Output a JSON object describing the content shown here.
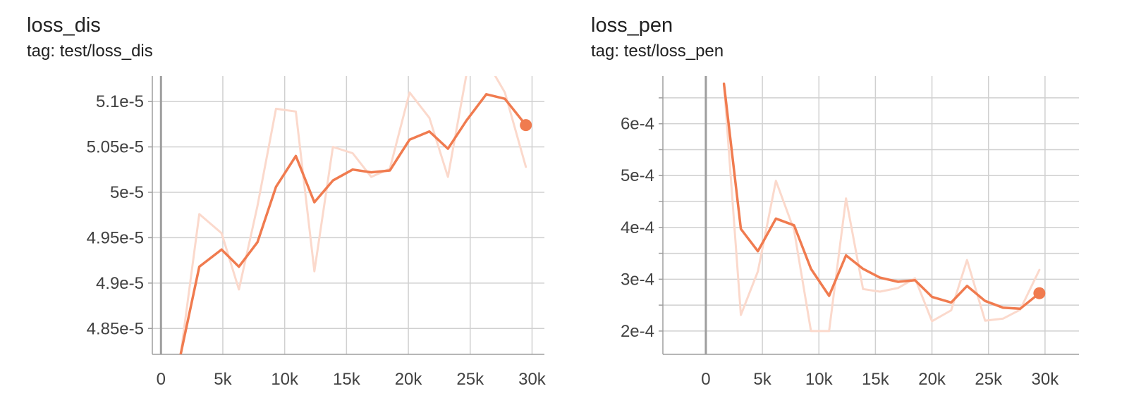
{
  "colors": {
    "line": "#f07b4f",
    "raw": "#fbd9cc",
    "grid": "#d0d0d0",
    "axis": "#9e9e9e",
    "zero": "#9e9e9e",
    "text": "#424242"
  },
  "cards": [
    {
      "title": "loss_dis",
      "tag": "tag: test/loss_dis"
    },
    {
      "title": "loss_pen",
      "tag": "tag: test/loss_pen"
    }
  ],
  "chart_data": [
    {
      "type": "line",
      "title": "loss_dis",
      "subtitle": "tag: test/loss_dis",
      "xlim": [
        -700,
        31000
      ],
      "ylim": [
        4.8215e-05,
        5.128e-05
      ],
      "x_ticks": [
        0,
        5000,
        10000,
        15000,
        20000,
        25000,
        30000
      ],
      "x_tick_labels": [
        "0",
        "5k",
        "10k",
        "15k",
        "20k",
        "25k",
        "30k"
      ],
      "y_ticks": [
        4.85e-05,
        4.9e-05,
        4.95e-05,
        5e-05,
        5.05e-05,
        5.1e-05
      ],
      "y_tick_labels": [
        "4.85e-5",
        "4.9e-5",
        "4.95e-5",
        "5e-5",
        "5.05e-5",
        "5.1e-5"
      ],
      "grid": true,
      "series": [
        {
          "role": "smoothed",
          "x": [
            1600,
            3100,
            4900,
            6300,
            7800,
            9300,
            10900,
            12400,
            13900,
            15500,
            17000,
            18500,
            20100,
            21700,
            23200,
            24700,
            26300,
            27800,
            29500
          ],
          "y": [
            4.822e-05,
            4.918e-05,
            4.937e-05,
            4.918e-05,
            4.945e-05,
            5.006e-05,
            5.04e-05,
            4.989e-05,
            5.013e-05,
            5.025e-05,
            5.022e-05,
            5.024e-05,
            5.058e-05,
            5.067e-05,
            5.048e-05,
            5.079e-05,
            5.108e-05,
            5.103e-05,
            5.074e-05
          ]
        },
        {
          "role": "raw",
          "x": [
            1600,
            3100,
            4900,
            6300,
            7800,
            9300,
            10900,
            12400,
            13900,
            15500,
            17000,
            18500,
            20100,
            21700,
            23200,
            24700,
            26300,
            27800,
            29500
          ],
          "y": [
            4.822e-05,
            4.976e-05,
            4.955e-05,
            4.893e-05,
            4.985e-05,
            5.092e-05,
            5.089e-05,
            4.913e-05,
            5.05e-05,
            5.043e-05,
            5.017e-05,
            5.026e-05,
            5.11e-05,
            5.082e-05,
            5.017e-05,
            5.13e-05,
            5.145e-05,
            5.11e-05,
            5.028e-05
          ]
        }
      ]
    },
    {
      "type": "line",
      "title": "loss_pen",
      "subtitle": "tag: test/loss_pen",
      "xlim": [
        -3800,
        33000
      ],
      "ylim": [
        0.000155,
        0.000692
      ],
      "x_ticks": [
        0,
        5000,
        10000,
        15000,
        20000,
        25000,
        30000
      ],
      "x_tick_labels": [
        "0",
        "5k",
        "10k",
        "15k",
        "20k",
        "25k",
        "30k"
      ],
      "y_ticks": [
        0.0002,
        0.0003,
        0.0004,
        0.0005,
        0.0006
      ],
      "y_tick_labels": [
        "2e-4",
        "3e-4",
        "4e-4",
        "5e-4",
        "6e-4"
      ],
      "y_minor_ticks": [
        0.00025,
        0.00035,
        0.00045,
        0.00055,
        0.00065
      ],
      "grid": true,
      "series": [
        {
          "role": "smoothed",
          "x": [
            1600,
            3100,
            4600,
            6200,
            7800,
            9300,
            10900,
            12400,
            13900,
            15400,
            17000,
            18500,
            20000,
            21700,
            23100,
            24700,
            26300,
            27800,
            29500
          ],
          "y": [
            0.000677,
            0.000397,
            0.000354,
            0.000417,
            0.000404,
            0.00032,
            0.000268,
            0.000346,
            0.00032,
            0.000303,
            0.000295,
            0.000298,
            0.000266,
            0.000255,
            0.000287,
            0.000258,
            0.000245,
            0.000243,
            0.000273
          ]
        },
        {
          "role": "raw",
          "x": [
            1600,
            3100,
            4600,
            6200,
            7800,
            9300,
            10900,
            12400,
            13900,
            15400,
            17000,
            18500,
            20000,
            21700,
            23100,
            24700,
            26300,
            27800,
            29500
          ],
          "y": [
            0.000677,
            0.000231,
            0.000315,
            0.00049,
            0.000395,
            0.0002,
            0.0002,
            0.000456,
            0.000281,
            0.000276,
            0.000283,
            0.000302,
            0.000219,
            0.00024,
            0.000337,
            0.00022,
            0.000224,
            0.000241,
            0.000318
          ]
        }
      ]
    }
  ]
}
